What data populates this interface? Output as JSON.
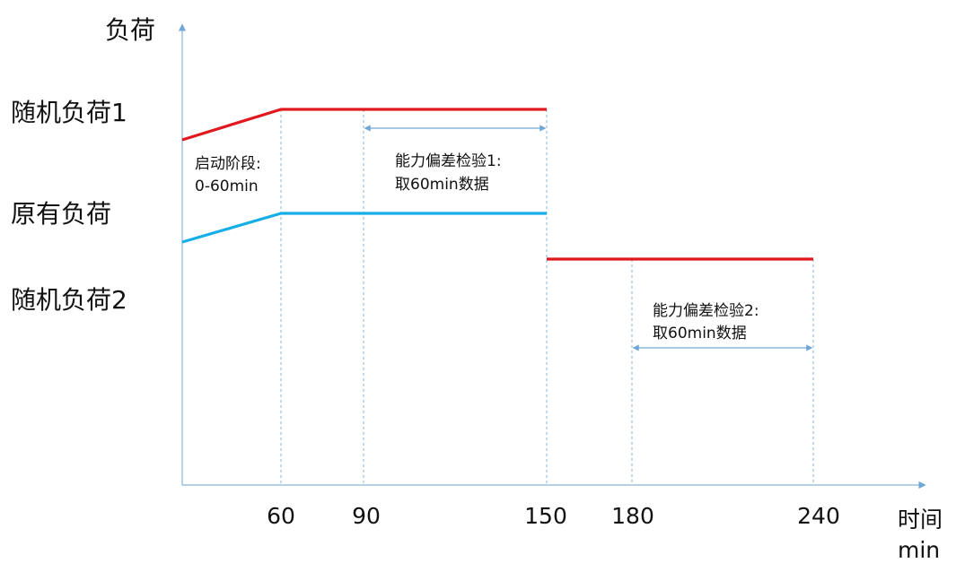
{
  "y_axis_label": "负荷",
  "x_axis_label_line1": "时间",
  "x_axis_label_line2": "min",
  "load_labels": {
    "random1": "随机负荷1",
    "original": "原有负荷",
    "random2": "随机负荷2"
  },
  "annotations": {
    "startup_line1": "启动阶段:",
    "startup_line2": "0-60min",
    "check1_line1": "能力偏差检验1:",
    "check1_line2": "取60min数据",
    "check2_line1": "能力偏差检验2:",
    "check2_line2": "取60min数据"
  },
  "colors": {
    "axis": "#8ab4d8",
    "red": "#e0191f",
    "blue": "#16aee6",
    "guide": "#8ab4d8",
    "arrow": "#6ea6d6"
  },
  "chart_data": {
    "type": "line",
    "xlabel": "时间 min",
    "ylabel": "负荷",
    "x_ticks": [
      60,
      90,
      150,
      180,
      240
    ],
    "series": [
      {
        "name": "随机负荷1",
        "color": "#e0191f",
        "points": [
          [
            0,
            "start"
          ],
          [
            60,
            "随机负荷1"
          ],
          [
            150,
            "随机负荷1"
          ]
        ]
      },
      {
        "name": "原有负荷",
        "color": "#16aee6",
        "points": [
          [
            0,
            "start"
          ],
          [
            60,
            "原有负荷"
          ],
          [
            150,
            "原有负荷"
          ]
        ]
      },
      {
        "name": "随机负荷2",
        "color": "#e0191f",
        "points": [
          [
            150,
            "随机负荷2"
          ],
          [
            240,
            "随机负荷2"
          ]
        ]
      }
    ],
    "intervals": [
      {
        "name": "启动阶段",
        "from": 0,
        "to": 60
      },
      {
        "name": "能力偏差检验1",
        "from": 90,
        "to": 150
      },
      {
        "name": "能力偏差检验2",
        "from": 180,
        "to": 240
      }
    ]
  }
}
